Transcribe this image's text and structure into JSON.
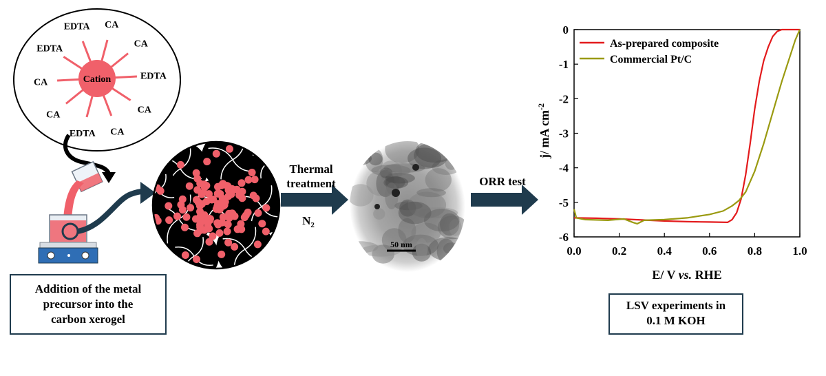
{
  "precursor": {
    "center_label": "Cation",
    "ligands": [
      "CA",
      "CA",
      "EDTA",
      "CA",
      "CA",
      "EDTA",
      "CA",
      "CA",
      "EDTA",
      "EDTA"
    ]
  },
  "steps": {
    "addition_caption": "Addition of the metal\nprecursor into the\ncarbon xerogel",
    "thermal_line1": "Thermal",
    "thermal_line2": "treatment",
    "atmosphere": "N",
    "atmosphere_sub": "2",
    "scale_bar": "50 nm",
    "orr": "ORR test",
    "lsv_caption": "LSV experiments in\n0.1 M KOH"
  },
  "colors": {
    "precursor_pink": "#f0606a",
    "carbon_black": "#000000",
    "arrow_blue": "#1f3b4d",
    "composite_line": "#e31a1c",
    "ptc_line": "#9a9a10"
  },
  "chart_data": {
    "type": "line",
    "xlabel_prefix": "E/ V ",
    "xlabel_italic": "vs.",
    "xlabel_suffix": " RHE",
    "ylabel": "j/ mA cm",
    "ylabel_sup": "-2",
    "xlim": [
      0.0,
      1.0
    ],
    "ylim": [
      -6,
      0
    ],
    "x_ticks": [
      "0.0",
      "0.2",
      "0.4",
      "0.6",
      "0.8",
      "1.0"
    ],
    "y_ticks": [
      "0",
      "-1",
      "-2",
      "-3",
      "-4",
      "-5",
      "-6"
    ],
    "legend_position": "top-left",
    "series": [
      {
        "name": "As-prepared composite",
        "color": "#e31a1c",
        "points": [
          [
            0.0,
            -5.45
          ],
          [
            0.1,
            -5.46
          ],
          [
            0.2,
            -5.48
          ],
          [
            0.3,
            -5.51
          ],
          [
            0.4,
            -5.54
          ],
          [
            0.5,
            -5.56
          ],
          [
            0.6,
            -5.57
          ],
          [
            0.68,
            -5.58
          ],
          [
            0.7,
            -5.5
          ],
          [
            0.72,
            -5.3
          ],
          [
            0.74,
            -4.9
          ],
          [
            0.76,
            -4.2
          ],
          [
            0.78,
            -3.3
          ],
          [
            0.8,
            -2.3
          ],
          [
            0.82,
            -1.5
          ],
          [
            0.84,
            -0.9
          ],
          [
            0.86,
            -0.5
          ],
          [
            0.88,
            -0.2
          ],
          [
            0.9,
            -0.05
          ],
          [
            0.92,
            0.0
          ],
          [
            0.95,
            0.0
          ],
          [
            1.0,
            0.0
          ]
        ]
      },
      {
        "name": "Commercial Pt/C",
        "color": "#9a9a10",
        "points": [
          [
            0.0,
            -5.2
          ],
          [
            0.01,
            -5.45
          ],
          [
            0.05,
            -5.5
          ],
          [
            0.15,
            -5.52
          ],
          [
            0.22,
            -5.48
          ],
          [
            0.26,
            -5.58
          ],
          [
            0.28,
            -5.62
          ],
          [
            0.31,
            -5.52
          ],
          [
            0.4,
            -5.5
          ],
          [
            0.5,
            -5.45
          ],
          [
            0.6,
            -5.35
          ],
          [
            0.66,
            -5.25
          ],
          [
            0.7,
            -5.1
          ],
          [
            0.73,
            -4.95
          ],
          [
            0.76,
            -4.7
          ],
          [
            0.8,
            -4.1
          ],
          [
            0.84,
            -3.3
          ],
          [
            0.88,
            -2.4
          ],
          [
            0.92,
            -1.5
          ],
          [
            0.95,
            -0.9
          ],
          [
            0.98,
            -0.3
          ],
          [
            1.0,
            0.0
          ]
        ]
      }
    ]
  }
}
